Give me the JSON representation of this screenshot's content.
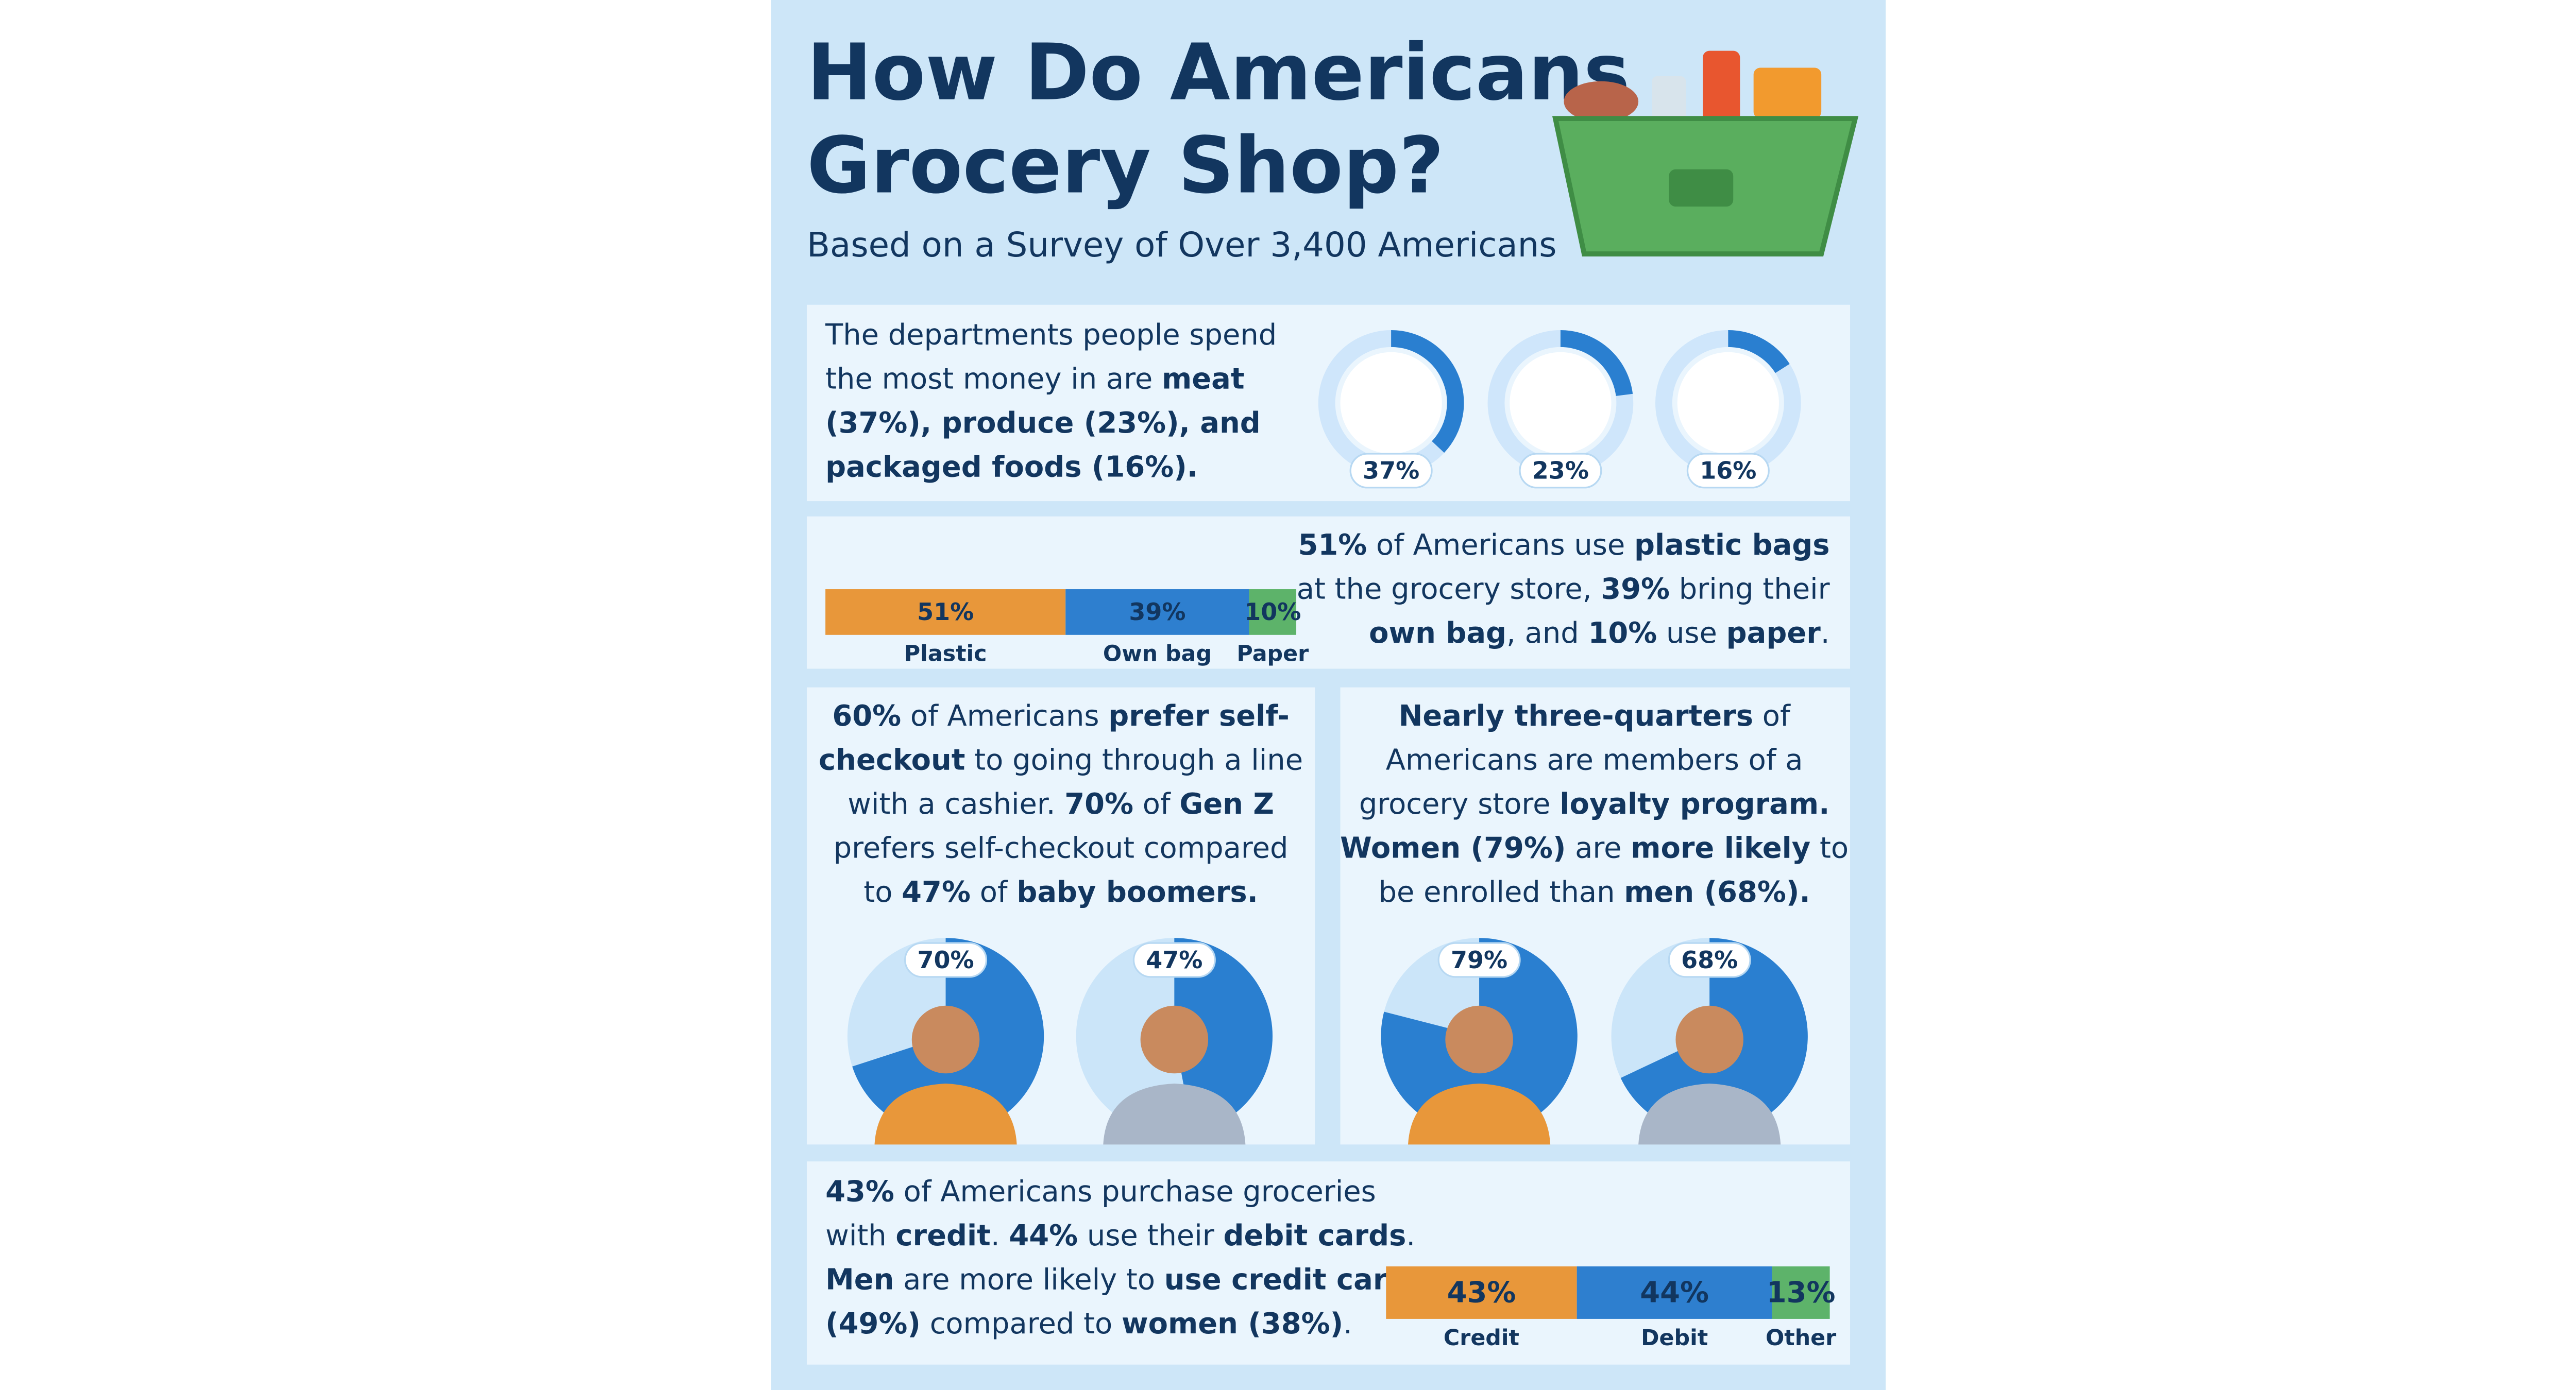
{
  "header": {
    "title": [
      "How Do Americans",
      "Grocery Shop?"
    ],
    "subtitle": "Based on a Survey of Over 3,400 Americans"
  },
  "departments": {
    "lines": [
      [
        {
          "text": "The departments people spend"
        }
      ],
      [
        {
          "text": "the most money in are "
        },
        {
          "text": "meat",
          "bold": true
        }
      ],
      [
        {
          "text": "(37%), produce (23%), and",
          "bold": true
        }
      ],
      [
        {
          "text": "packaged foods (16%).",
          "bold": true
        }
      ]
    ],
    "chart": {
      "type": "donut",
      "values": [
        37,
        23,
        16
      ],
      "value_labels": [
        "37%",
        "23%",
        "16%"
      ],
      "color": "#2a7fd0"
    }
  },
  "bags": {
    "lines": [
      [
        {
          "text": "51%",
          "bold": true
        },
        {
          "text": " of Americans use "
        },
        {
          "text": "plastic bags",
          "bold": true
        }
      ],
      [
        {
          "text": "at the grocery store, "
        },
        {
          "text": "39%",
          "bold": true
        },
        {
          "text": " bring their"
        }
      ],
      [
        {
          "text": "own bag",
          "bold": true
        },
        {
          "text": ", and "
        },
        {
          "text": "10%",
          "bold": true
        },
        {
          "text": " use "
        },
        {
          "text": "paper",
          "bold": true
        },
        {
          "text": "."
        }
      ]
    ],
    "chart": {
      "type": "stacked_bar",
      "categories": [
        "Plastic",
        "Own bag",
        "Paper"
      ],
      "values": [
        51,
        39,
        10
      ],
      "value_labels": [
        "51%",
        "39%",
        "10%"
      ],
      "colors": [
        "#e8973a",
        "#2e7fcf",
        "#5db36a"
      ]
    }
  },
  "checkout": {
    "lines": [
      [
        {
          "text": "60%",
          "bold": true
        },
        {
          "text": " of Americans "
        },
        {
          "text": "prefer self-",
          "bold": true
        }
      ],
      [
        {
          "text": "checkout",
          "bold": true
        },
        {
          "text": " to going through a line"
        }
      ],
      [
        {
          "text": "with a cashier. "
        },
        {
          "text": "70%",
          "bold": true
        },
        {
          "text": " of "
        },
        {
          "text": "Gen Z",
          "bold": true
        }
      ],
      [
        {
          "text": "prefers self-checkout compared"
        }
      ],
      [
        {
          "text": "to "
        },
        {
          "text": "47%",
          "bold": true
        },
        {
          "text": " of "
        },
        {
          "text": "baby boomers.",
          "bold": true
        }
      ]
    ],
    "chart": {
      "type": "pie",
      "values": [
        70,
        47
      ],
      "value_labels": [
        "70%",
        "47%"
      ],
      "color": "#2a7fd0"
    }
  },
  "loyalty": {
    "lines": [
      [
        {
          "text": "Nearly three-quarters",
          "bold": true
        },
        {
          "text": " of"
        }
      ],
      [
        {
          "text": "Americans are members of a"
        }
      ],
      [
        {
          "text": "grocery store "
        },
        {
          "text": "loyalty program.",
          "bold": true
        }
      ],
      [
        {
          "text": "Women (79%)",
          "bold": true
        },
        {
          "text": " are "
        },
        {
          "text": "more likely",
          "bold": true
        },
        {
          "text": " to"
        }
      ],
      [
        {
          "text": "be enrolled than "
        },
        {
          "text": "men (68%).",
          "bold": true
        }
      ]
    ],
    "chart": {
      "type": "pie",
      "values": [
        79,
        68
      ],
      "value_labels": [
        "79%",
        "68%"
      ],
      "color": "#2a7fd0"
    }
  },
  "payment": {
    "lines": [
      [
        {
          "text": "43%",
          "bold": true
        },
        {
          "text": " of Americans purchase groceries"
        }
      ],
      [
        {
          "text": "with "
        },
        {
          "text": "credit",
          "bold": true
        },
        {
          "text": ". "
        },
        {
          "text": "44%",
          "bold": true
        },
        {
          "text": " use their "
        },
        {
          "text": "debit cards",
          "bold": true
        },
        {
          "text": "."
        }
      ],
      [
        {
          "text": "Men",
          "bold": true
        },
        {
          "text": " are more likely to "
        },
        {
          "text": "use credit cards",
          "bold": true
        }
      ],
      [
        {
          "text": "(49%)",
          "bold": true
        },
        {
          "text": " compared to "
        },
        {
          "text": "women (38%)",
          "bold": true
        },
        {
          "text": "."
        }
      ]
    ],
    "chart": {
      "type": "stacked_bar",
      "categories": [
        "Credit",
        "Debit",
        "Other"
      ],
      "values": [
        43,
        44,
        13
      ],
      "value_labels": [
        "43%",
        "44%",
        "13%"
      ],
      "colors": [
        "#e8973a",
        "#2e7fcf",
        "#5db36a"
      ]
    }
  }
}
